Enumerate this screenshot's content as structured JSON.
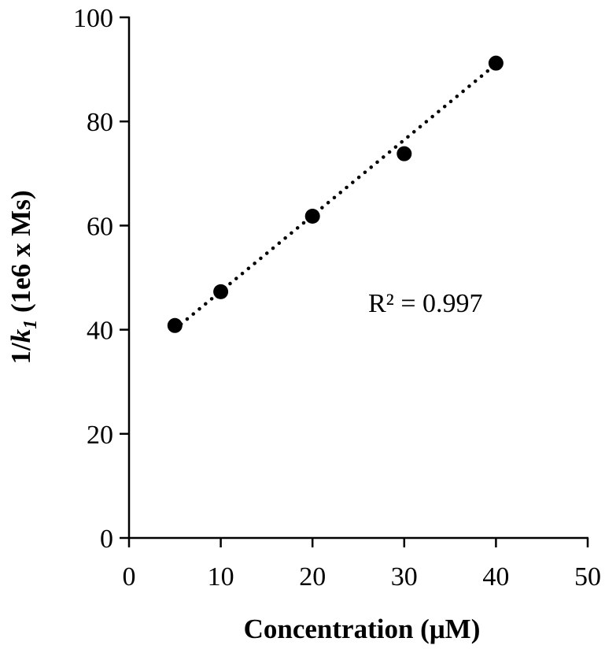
{
  "chart_data": {
    "type": "scatter",
    "x": [
      5,
      10,
      20,
      30,
      40
    ],
    "y": [
      40.8,
      47.3,
      61.8,
      73.8,
      91.2
    ],
    "xlim": [
      0,
      50
    ],
    "ylim": [
      0,
      100
    ],
    "xticks": [
      0,
      10,
      20,
      30,
      40,
      50
    ],
    "yticks": [
      0,
      20,
      40,
      60,
      80,
      100
    ],
    "xlabel": "Concentration (μM)",
    "ylabel": {
      "prefix": "1/",
      "italic": "k",
      "subscript": "1",
      "suffix": " (1e6 x Ms)"
    },
    "trendline": {
      "style": "dotted",
      "color": "#000000",
      "from": [
        5,
        40.1
      ],
      "to": [
        40,
        91.0
      ]
    },
    "annotation": "R² = 0.997",
    "marker_color": "#000000",
    "grid": false,
    "legend": false
  }
}
